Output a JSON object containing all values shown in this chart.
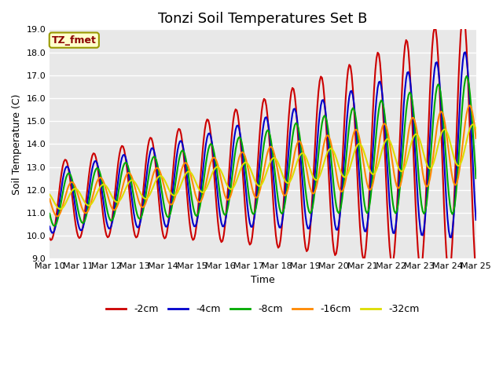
{
  "title": "Tonzi Soil Temperatures Set B",
  "xlabel": "Time",
  "ylabel": "Soil Temperature (C)",
  "annotation": "TZ_fmet",
  "ylim": [
    9.0,
    19.0
  ],
  "yticks": [
    9.0,
    10.0,
    11.0,
    12.0,
    13.0,
    14.0,
    15.0,
    16.0,
    17.0,
    18.0,
    19.0
  ],
  "xtick_labels": [
    "Mar 10",
    "Mar 11",
    "Mar 12",
    "Mar 13",
    "Mar 14",
    "Mar 15",
    "Mar 16",
    "Mar 17",
    "Mar 18",
    "Mar 19",
    "Mar 20",
    "Mar 21",
    "Mar 22",
    "Mar 23",
    "Mar 24",
    "Mar 25"
  ],
  "background_color": "#e8e8e8",
  "plot_bg_color": "#e8e8e8",
  "series_colors": [
    "#cc0000",
    "#0000cc",
    "#00aa00",
    "#ff8800",
    "#dddd00"
  ],
  "series_labels": [
    "-2cm",
    "-4cm",
    "-8cm",
    "-16cm",
    "-32cm"
  ],
  "line_width": 1.5,
  "title_fontsize": 13,
  "axis_label_fontsize": 9,
  "tick_fontsize": 8
}
